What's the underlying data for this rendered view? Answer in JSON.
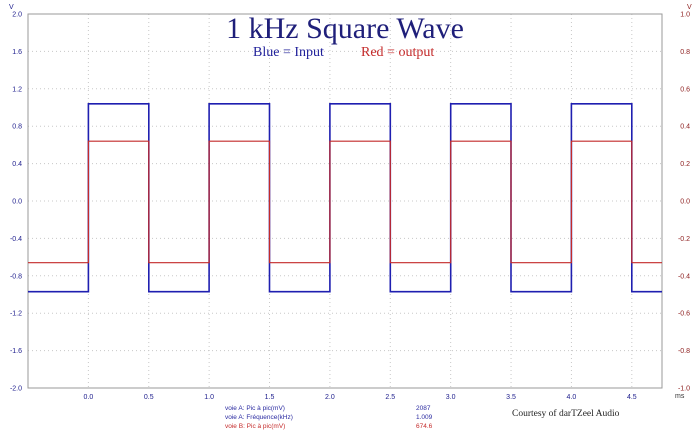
{
  "chart_data": {
    "type": "line",
    "title": "1 kHz Square Wave",
    "legend": [
      {
        "text": "Blue = Input",
        "color": "#1f1f9a"
      },
      {
        "text": "Red = output",
        "color": "#c42a2a"
      }
    ],
    "xlabel": "ms",
    "xlim": [
      -0.5,
      4.75
    ],
    "x_ticks": [
      "0.0",
      "0.5",
      "1.0",
      "1.5",
      "2.0",
      "2.5",
      "3.0",
      "3.5",
      "4.0",
      "4.5"
    ],
    "y_left": {
      "label": "V",
      "ylim": [
        -2.0,
        2.0
      ],
      "ticks": [
        "2.0",
        "1.6",
        "1.2",
        "0.8",
        "0.4",
        "0.0",
        "-0.4",
        "-0.8",
        "-1.2",
        "-1.6",
        "-2.0"
      ]
    },
    "y_right": {
      "label": "V",
      "ylim": [
        -1.0,
        1.0
      ],
      "ticks": [
        "1.0",
        "0.8",
        "0.6",
        "0.4",
        "0.2",
        "0.0",
        "-0.2",
        "-0.4",
        "-0.6",
        "-0.8",
        "-1.0"
      ]
    },
    "grid": true,
    "series": [
      {
        "name": "Blue = Input",
        "axis": "left",
        "color": "#1f1fb0",
        "x": [
          -0.5,
          0.0,
          0.0,
          0.5,
          0.5,
          1.0,
          1.0,
          1.5,
          1.5,
          2.0,
          2.0,
          2.5,
          2.5,
          3.0,
          3.0,
          3.5,
          3.5,
          4.0,
          4.0,
          4.5,
          4.5,
          4.75
        ],
        "y": [
          -0.97,
          -0.97,
          1.04,
          1.04,
          -0.97,
          -0.97,
          1.04,
          1.04,
          -0.97,
          -0.97,
          1.04,
          1.04,
          -0.97,
          -0.97,
          1.04,
          1.04,
          -0.97,
          -0.97,
          1.04,
          1.04,
          -0.97,
          -0.97
        ]
      },
      {
        "name": "Red = output",
        "axis": "right",
        "color": "#c42a2a",
        "x": [
          -0.5,
          0.0,
          0.0,
          0.5,
          0.5,
          1.0,
          1.0,
          1.5,
          1.5,
          2.0,
          2.0,
          2.5,
          2.5,
          3.0,
          3.0,
          3.5,
          3.5,
          4.0,
          4.0,
          4.5,
          4.5,
          4.75
        ],
        "y": [
          -0.33,
          -0.33,
          0.32,
          0.32,
          -0.33,
          -0.33,
          0.32,
          0.32,
          -0.33,
          -0.33,
          0.32,
          0.32,
          -0.33,
          -0.33,
          0.32,
          0.32,
          -0.33,
          -0.33,
          0.32,
          0.32,
          -0.33,
          -0.33
        ]
      }
    ]
  },
  "measurements": [
    {
      "label": "voie A: Pic à pic(mV)",
      "value": "2087",
      "color": "#2a2aa0"
    },
    {
      "label": "voie A: Fréquence(kHz)",
      "value": "1.009",
      "color": "#2a2aa0"
    },
    {
      "label": "voie B: Pic à pic(mV)",
      "value": "674.6",
      "color": "#c42a2a"
    }
  ],
  "credit": "Courtesy of darTZeel Audio"
}
